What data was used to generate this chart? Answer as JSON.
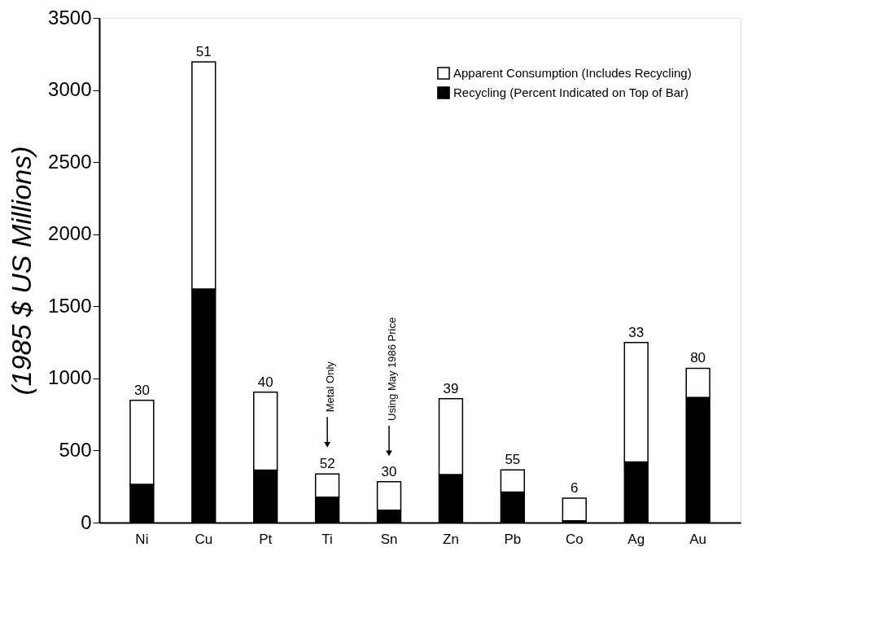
{
  "chart_data": {
    "type": "bar",
    "stacked": true,
    "ylabel": "(1985 $ US Millions)",
    "categories": [
      "Ni",
      "Cu",
      "Pt",
      "Ti",
      "Sn",
      "Zn",
      "Pb",
      "Co",
      "Ag",
      "Au"
    ],
    "series": [
      {
        "name": "Recycling (Percent Indicated on Top of Bar)",
        "color": "#000000",
        "values": [
          265,
          1620,
          364,
          177,
          86,
          333,
          211,
          12,
          421,
          868
        ]
      },
      {
        "name": "Apparent Consumption (Includes Recycling)",
        "color": "#ffffff",
        "values": [
          583,
          1575,
          540,
          160,
          197,
          527,
          154,
          158,
          828,
          202
        ]
      }
    ],
    "ylim": [
      0,
      3500
    ],
    "yticks": [
      0,
      500,
      1000,
      1500,
      2000,
      2500,
      3000,
      3500
    ],
    "grid": false,
    "legend": "top right",
    "annotations": [
      {
        "text": "30",
        "x": "Ni",
        "y": 848
      },
      {
        "text": "51",
        "x": "Cu",
        "y": 3195
      },
      {
        "text": "40",
        "x": "Pt",
        "y": 904
      },
      {
        "text": "52",
        "x": "Ti",
        "y": 337
      },
      {
        "text": "30",
        "x": "Sn",
        "y": 283
      },
      {
        "text": "39",
        "x": "Zn",
        "y": 860
      },
      {
        "text": "55",
        "x": "Pb",
        "y": 365
      },
      {
        "text": "6",
        "x": "Co",
        "y": 170
      },
      {
        "text": "33",
        "x": "Ag",
        "y": 1249
      },
      {
        "text": "80",
        "x": "Au",
        "y": 1070
      },
      {
        "text": "Metal Only",
        "x": "Ti",
        "y": 540
      },
      {
        "text": "Using May 1986 Price",
        "x": "Sn",
        "y": 480
      }
    ]
  }
}
